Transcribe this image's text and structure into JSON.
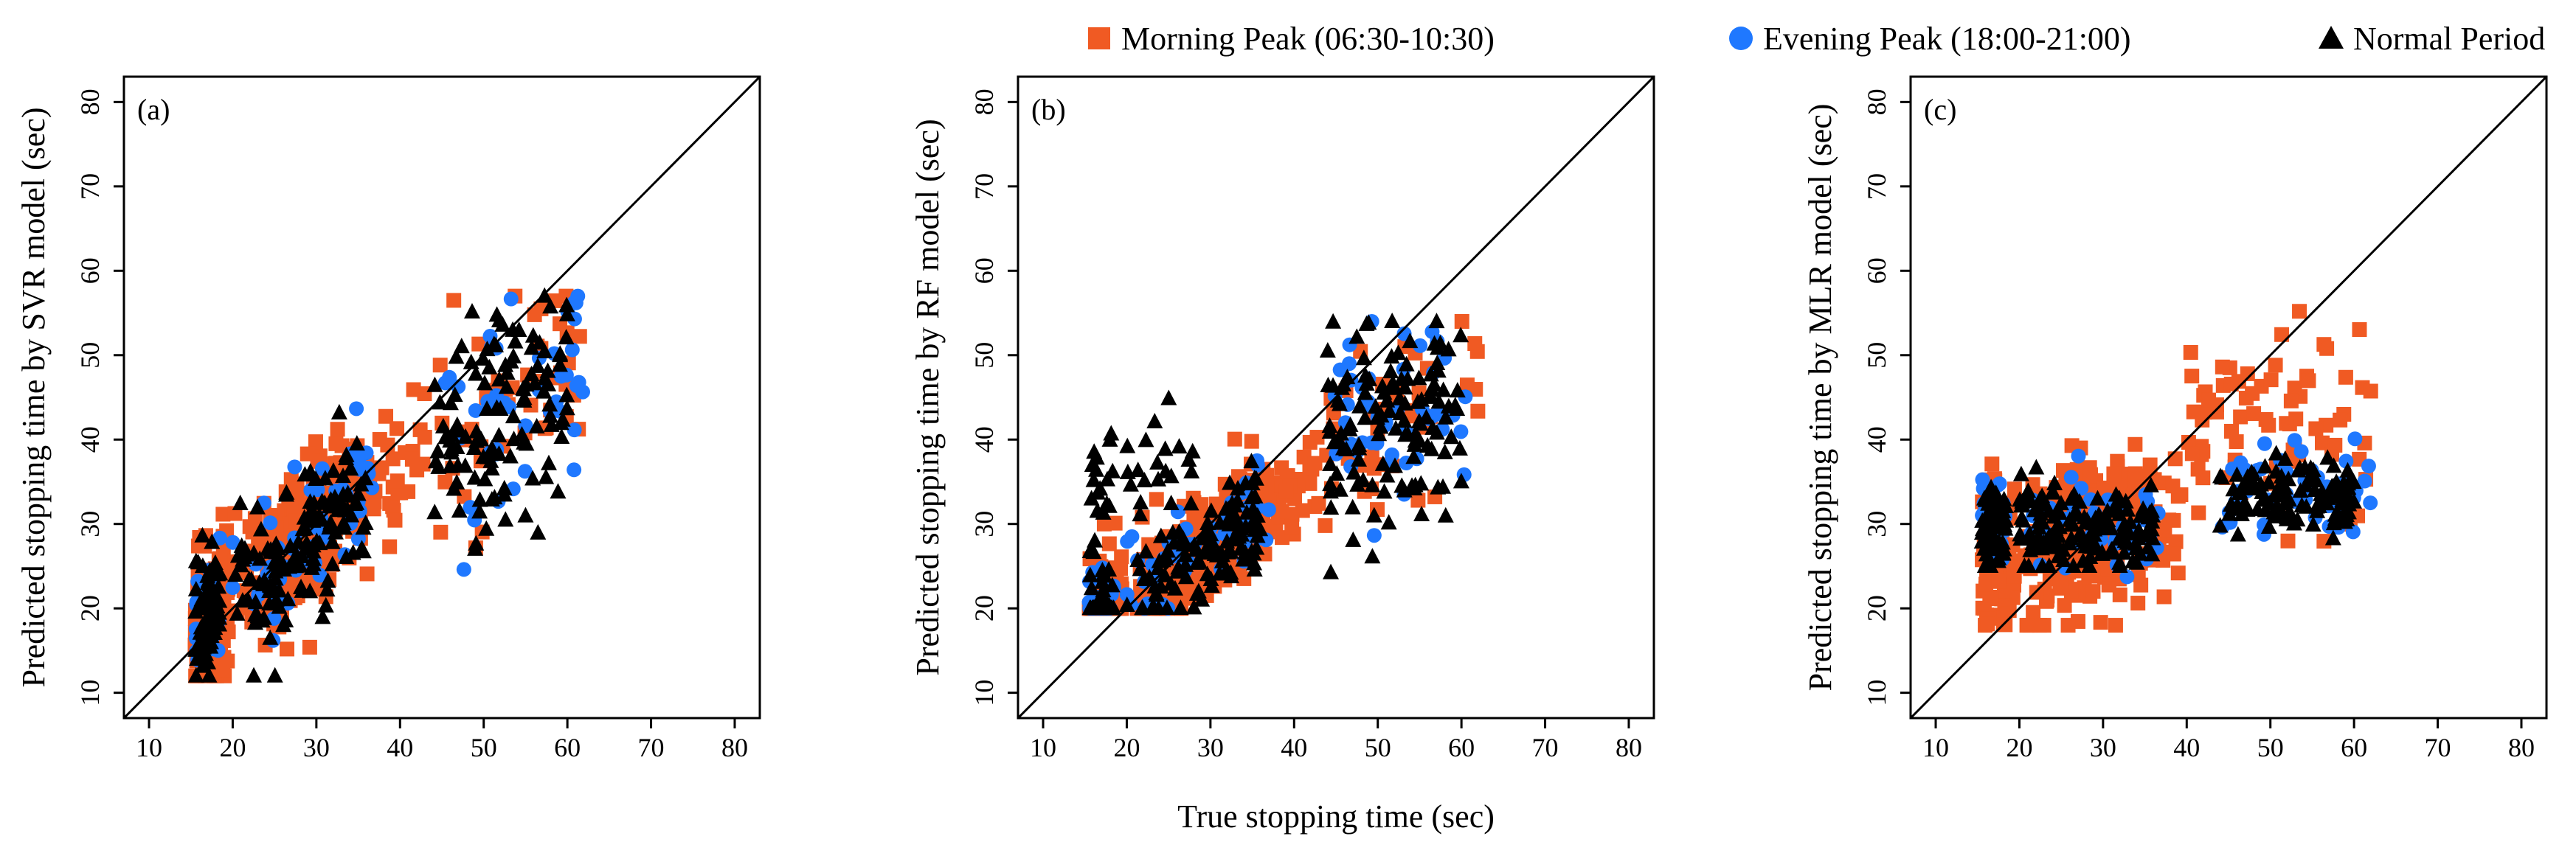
{
  "chart_data": {
    "type": "scatter",
    "legend": {
      "placement": "top-right",
      "entries": [
        {
          "series_key": "morning",
          "label": "Morning Peak (06:30-10:30)",
          "marker": "square",
          "color": "#f05a23"
        },
        {
          "series_key": "evening",
          "label": "Evening Peak (18:00-21:00)",
          "marker": "circle",
          "color": "#1f78ff"
        },
        {
          "series_key": "normal",
          "label": "Normal Period",
          "marker": "triangle",
          "color": "#000000"
        }
      ]
    },
    "x_title": "True stopping time (sec)",
    "axis": {
      "xlim": [
        7,
        83
      ],
      "ylim": [
        7,
        83
      ],
      "x_ticks": [
        "10",
        "20",
        "30",
        "40",
        "50",
        "60",
        "70",
        "80"
      ],
      "y_ticks": [
        "10",
        "20",
        "30",
        "40",
        "50",
        "60",
        "70",
        "80"
      ],
      "tick_values": [
        10,
        20,
        30,
        40,
        50,
        60,
        70,
        80
      ],
      "reference_line": "y = x"
    },
    "panels": [
      {
        "label": "(a)",
        "ylabel": "Predicted stopping time by SVR model (sec)",
        "model": "svr"
      },
      {
        "label": "(b)",
        "ylabel": "Predicted stopping time by RF model (sec)",
        "model": "rf"
      },
      {
        "label": "(c)",
        "ylabel": "Predicted stopping time by MLR model (sec)",
        "model": "mlr"
      }
    ]
  }
}
